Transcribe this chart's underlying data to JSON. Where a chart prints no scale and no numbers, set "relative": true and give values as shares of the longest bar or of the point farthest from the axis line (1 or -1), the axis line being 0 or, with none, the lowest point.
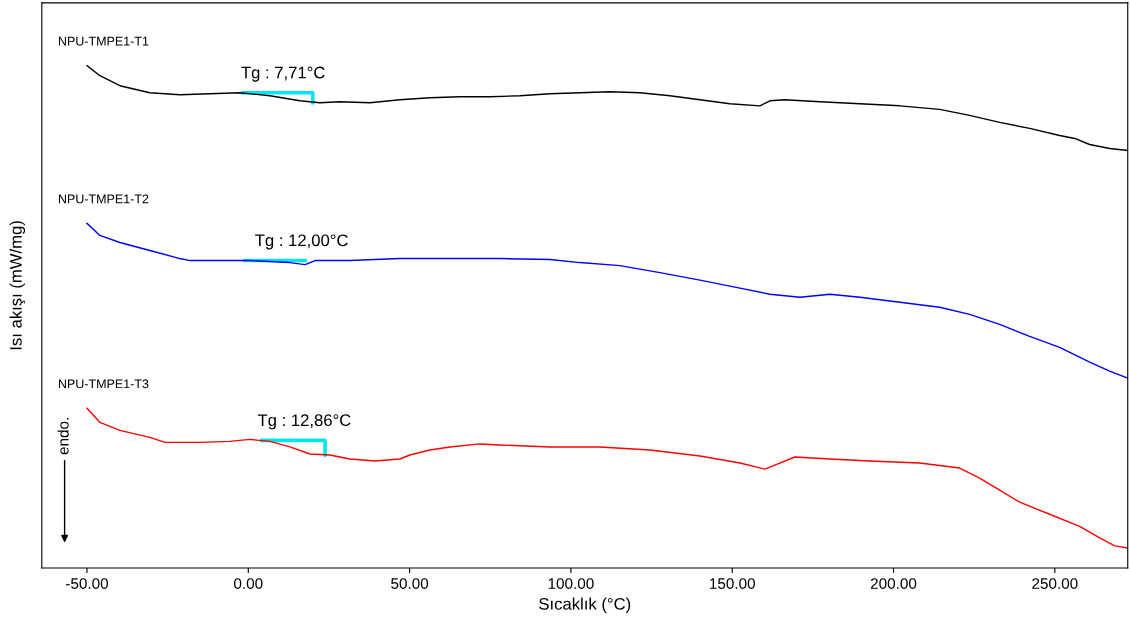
{
  "chart_data": {
    "type": "line",
    "relative": true,
    "xlabel": "Sıcaklık (°C)",
    "ylabel": "Isı akışı (mW/mg)",
    "xlim": [
      -64,
      272.6
    ],
    "xticks": [
      {
        "value": -50,
        "label": "-50.00"
      },
      {
        "value": 0,
        "label": "0.00"
      },
      {
        "value": 50,
        "label": "50.00"
      },
      {
        "value": 100,
        "label": "100.00"
      },
      {
        "value": 150,
        "label": "150.00"
      },
      {
        "value": 200,
        "label": "200.00"
      },
      {
        "value": 250,
        "label": "250.00"
      }
    ],
    "grid": false,
    "legend": false,
    "marker": "none",
    "line_style": "solid",
    "series": [
      {
        "name": "NPU-TMPE1-T1",
        "color": "#000000",
        "x": [
          -50,
          -46,
          -39.8,
          -30.5,
          -21.2,
          -11.9,
          -2.6,
          6.7,
          16,
          22.2,
          28.4,
          37.7,
          47,
          56.3,
          65.6,
          74.9,
          84.2,
          93.5,
          102.8,
          112.1,
          121.4,
          130.7,
          140,
          149.3,
          158.6,
          161.7,
          166.3,
          177.2,
          189.6,
          202,
          214.3,
          223.6,
          232.9,
          242.2,
          251.5,
          256.2,
          260.8,
          267,
          272.6
        ],
        "values": [
          1.0,
          0.98,
          0.96,
          0.946,
          0.942,
          0.944,
          0.946,
          0.94,
          0.93,
          0.926,
          0.928,
          0.926,
          0.932,
          0.936,
          0.938,
          0.938,
          0.94,
          0.944,
          0.946,
          0.948,
          0.946,
          0.94,
          0.932,
          0.924,
          0.92,
          0.93,
          0.932,
          0.928,
          0.924,
          0.92,
          0.913,
          0.901,
          0.887,
          0.875,
          0.861,
          0.855,
          0.843,
          0.835,
          0.831
        ]
      },
      {
        "name": "NPU-TMPE1-T2",
        "color": "#0000ff",
        "x": [
          -50,
          -46,
          -39.8,
          -30.5,
          -21.2,
          -18.1,
          -8.8,
          0.5,
          12.9,
          17.6,
          20.7,
          31.5,
          47,
          62.5,
          78,
          93.5,
          102.8,
          115.2,
          127.6,
          140,
          152.4,
          161.7,
          171,
          180.3,
          189.6,
          202,
          214.3,
          223.6,
          232.9,
          242.2,
          251.5,
          260.8,
          267,
          272.6
        ],
        "values": [
          0.686,
          0.662,
          0.648,
          0.632,
          0.616,
          0.612,
          0.612,
          0.612,
          0.608,
          0.604,
          0.612,
          0.612,
          0.616,
          0.616,
          0.616,
          0.614,
          0.608,
          0.602,
          0.588,
          0.573,
          0.557,
          0.545,
          0.539,
          0.545,
          0.539,
          0.529,
          0.519,
          0.505,
          0.485,
          0.461,
          0.439,
          0.41,
          0.392,
          0.378
        ]
      },
      {
        "name": "NPU-TMPE1-T3",
        "color": "#ff0000",
        "x": [
          -50,
          -46,
          -39.8,
          -30.5,
          -25.8,
          -15,
          -5.7,
          0.5,
          6.7,
          12.9,
          19.1,
          25.3,
          31.5,
          39.3,
          47,
          50.1,
          56.3,
          62.5,
          71.8,
          78,
          93.5,
          109,
          124.5,
          140,
          152.4,
          160.1,
          163.2,
          169.4,
          180.3,
          192.6,
          208.1,
          220.5,
          226.7,
          232.9,
          239.1,
          248.4,
          257.7,
          263.9,
          268.6,
          272.6
        ],
        "values": [
          0.318,
          0.29,
          0.274,
          0.26,
          0.25,
          0.25,
          0.252,
          0.256,
          0.252,
          0.241,
          0.227,
          0.225,
          0.217,
          0.213,
          0.217,
          0.225,
          0.235,
          0.241,
          0.247,
          0.245,
          0.241,
          0.241,
          0.235,
          0.223,
          0.209,
          0.197,
          0.205,
          0.221,
          0.217,
          0.213,
          0.209,
          0.199,
          0.179,
          0.155,
          0.131,
          0.107,
          0.083,
          0.06,
          0.044,
          0.04
        ]
      },
      {
        "color": "#00e5ee",
        "x": [
          -1.7,
          20.0,
          20.0
        ],
        "values": [
          0.946,
          0.946,
          0.926
        ]
      },
      {
        "color": "#00e5ee",
        "x": [
          -1,
          17.6
        ],
        "values": [
          0.612,
          0.612
        ]
      },
      {
        "color": "#00e5ee",
        "x": [
          4.2,
          23.8,
          23.8
        ],
        "values": [
          0.254,
          0.254,
          0.225
        ]
      }
    ],
    "annotations": [
      {
        "text": "Tg : 7,71°C",
        "x": 7.71,
        "y": 0.946
      },
      {
        "text": "Tg : 12,00°C",
        "x": 12,
        "y": 0.612
      },
      {
        "text": "Tg : 12,86°C",
        "x": 12.86,
        "y": 0.254
      },
      "endo."
    ]
  }
}
